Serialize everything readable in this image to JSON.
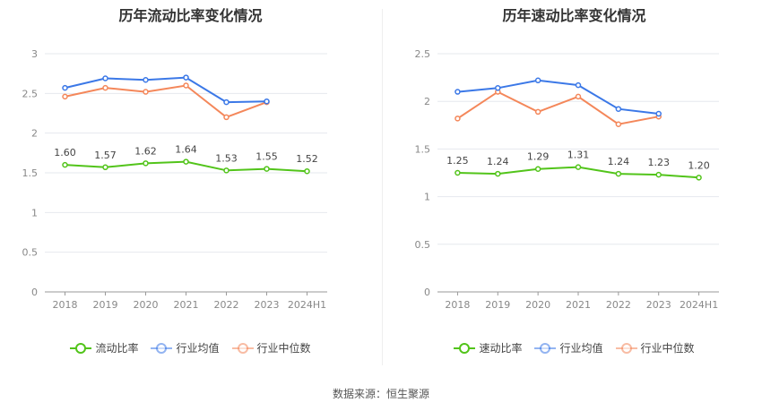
{
  "source": "数据来源：恒生聚源",
  "chart_data": [
    {
      "type": "line",
      "title": "历年流动比率变化情况",
      "categories": [
        "2018",
        "2019",
        "2020",
        "2021",
        "2022",
        "2023",
        "2024H1"
      ],
      "ylim": [
        0,
        3
      ],
      "yticks": [
        "0",
        "0.5",
        "1",
        "1.5",
        "2",
        "2.5",
        "3"
      ],
      "grid": true,
      "legend_position": "bottom",
      "series": [
        {
          "name": "流动比率",
          "color": "#52c41a",
          "values": [
            1.6,
            1.57,
            1.62,
            1.64,
            1.53,
            1.55,
            1.52
          ],
          "labels": [
            "1.60",
            "1.57",
            "1.62",
            "1.64",
            "1.53",
            "1.55",
            "1.52"
          ]
        },
        {
          "name": "行业均值",
          "color": "#3b78e7",
          "values": [
            2.57,
            2.69,
            2.67,
            2.7,
            2.39,
            2.4,
            null
          ]
        },
        {
          "name": "行业中位数",
          "color": "#f4875a",
          "values": [
            2.46,
            2.57,
            2.52,
            2.6,
            2.2,
            2.39,
            null
          ]
        }
      ]
    },
    {
      "type": "line",
      "title": "历年速动比率变化情况",
      "categories": [
        "2018",
        "2019",
        "2020",
        "2021",
        "2022",
        "2023",
        "2024H1"
      ],
      "ylim": [
        0,
        2.5
      ],
      "yticks": [
        "0",
        "0.5",
        "1",
        "1.5",
        "2",
        "2.5"
      ],
      "grid": true,
      "legend_position": "bottom",
      "series": [
        {
          "name": "速动比率",
          "color": "#52c41a",
          "values": [
            1.25,
            1.24,
            1.29,
            1.31,
            1.24,
            1.23,
            1.2
          ],
          "labels": [
            "1.25",
            "1.24",
            "1.29",
            "1.31",
            "1.24",
            "1.23",
            "1.20"
          ]
        },
        {
          "name": "行业均值",
          "color": "#3b78e7",
          "values": [
            2.1,
            2.14,
            2.22,
            2.17,
            1.92,
            1.87,
            null
          ]
        },
        {
          "name": "行业中位数",
          "color": "#f4875a",
          "values": [
            1.82,
            2.1,
            1.89,
            2.05,
            1.76,
            1.84,
            null
          ]
        }
      ]
    }
  ]
}
